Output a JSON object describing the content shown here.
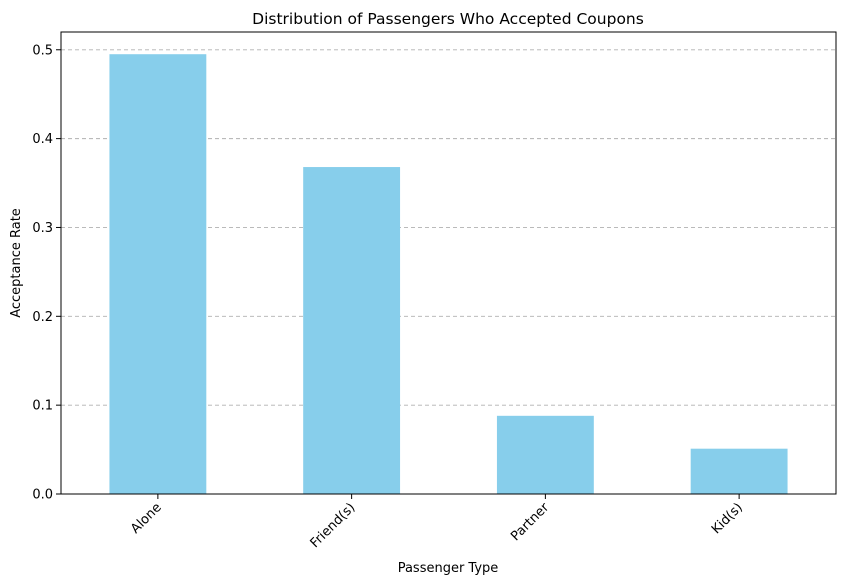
{
  "chart_data": {
    "type": "bar",
    "title": "Distribution of Passengers Who Accepted Coupons",
    "xlabel": "Passenger Type",
    "ylabel": "Acceptance Rate",
    "categories": [
      "Alone",
      "Friend(s)",
      "Partner",
      "Kid(s)"
    ],
    "values": [
      0.495,
      0.368,
      0.088,
      0.051
    ],
    "ylim": [
      0,
      0.52
    ],
    "yticks": [
      "0.0",
      "0.1",
      "0.2",
      "0.3",
      "0.4",
      "0.5"
    ],
    "grid": "y-dashed",
    "bar_color": "#87ceeb"
  }
}
